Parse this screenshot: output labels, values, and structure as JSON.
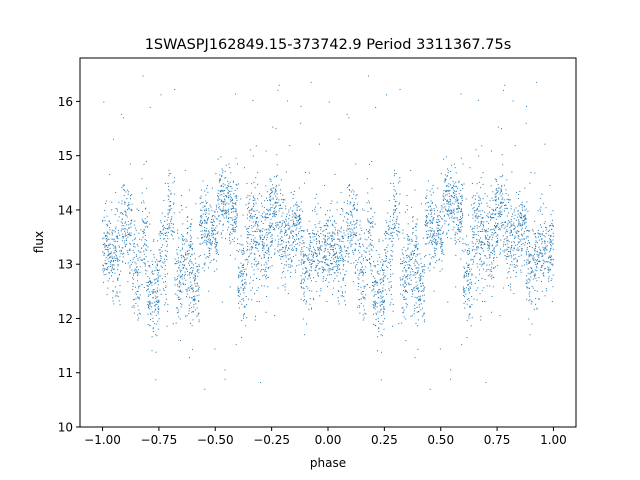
{
  "chart_data": {
    "type": "scatter",
    "title": "1SWASPJ162849.15-373742.9 Period 3311367.75s",
    "xlabel": "phase",
    "ylabel": "flux",
    "xlim": [
      -1.1,
      1.1
    ],
    "ylim": [
      10,
      16.8
    ],
    "xticks": [
      -1.0,
      -0.75,
      -0.5,
      -0.25,
      0.0,
      0.25,
      0.5,
      0.75,
      1.0
    ],
    "xtick_labels": [
      "−1.00",
      "−0.75",
      "−0.50",
      "−0.25",
      "0.00",
      "0.25",
      "0.50",
      "0.75",
      "1.00"
    ],
    "yticks": [
      10,
      11,
      12,
      13,
      14,
      15,
      16
    ],
    "ytick_labels": [
      "10",
      "11",
      "12",
      "13",
      "14",
      "15",
      "16"
    ],
    "grid": false,
    "legend": "none",
    "marker_color": "#1f77b4",
    "phased_flux_profile": {
      "note_phase": [
        0.0,
        0.05,
        0.1,
        0.15,
        0.2,
        0.25,
        0.3,
        0.35,
        0.4,
        0.45,
        0.5,
        0.55,
        0.6,
        0.65,
        0.7,
        0.75,
        0.8,
        0.85,
        0.9,
        0.95,
        1.0
      ],
      "segments": [
        {
          "x_from": 0.0,
          "x_to": 0.04,
          "center": 13.3,
          "spread": 0.35
        },
        {
          "x_from": 0.04,
          "x_to": 0.08,
          "center": 13.2,
          "spread": 0.45
        },
        {
          "x_from": 0.08,
          "x_to": 0.13,
          "center": 13.7,
          "spread": 0.4
        },
        {
          "x_from": 0.13,
          "x_to": 0.17,
          "center": 12.8,
          "spread": 0.5
        },
        {
          "x_from": 0.17,
          "x_to": 0.2,
          "center": 13.5,
          "spread": 0.45
        },
        {
          "x_from": 0.2,
          "x_to": 0.25,
          "center": 12.5,
          "spread": 0.4
        },
        {
          "x_from": 0.25,
          "x_to": 0.29,
          "center": 13.3,
          "spread": 0.45
        },
        {
          "x_from": 0.29,
          "x_to": 0.32,
          "center": 13.9,
          "spread": 0.4
        },
        {
          "x_from": 0.32,
          "x_to": 0.35,
          "center": 12.7,
          "spread": 0.45
        },
        {
          "x_from": 0.35,
          "x_to": 0.4,
          "center": 13.0,
          "spread": 0.5
        },
        {
          "x_from": 0.4,
          "x_to": 0.43,
          "center": 12.6,
          "spread": 0.35
        },
        {
          "x_from": 0.43,
          "x_to": 0.47,
          "center": 13.7,
          "spread": 0.35
        },
        {
          "x_from": 0.47,
          "x_to": 0.51,
          "center": 13.5,
          "spread": 0.3
        },
        {
          "x_from": 0.51,
          "x_to": 0.56,
          "center": 14.2,
          "spread": 0.3
        },
        {
          "x_from": 0.56,
          "x_to": 0.6,
          "center": 13.9,
          "spread": 0.4
        },
        {
          "x_from": 0.6,
          "x_to": 0.64,
          "center": 12.7,
          "spread": 0.4
        },
        {
          "x_from": 0.64,
          "x_to": 0.69,
          "center": 13.6,
          "spread": 0.55
        },
        {
          "x_from": 0.69,
          "x_to": 0.74,
          "center": 13.4,
          "spread": 0.4
        },
        {
          "x_from": 0.74,
          "x_to": 0.79,
          "center": 13.9,
          "spread": 0.45
        },
        {
          "x_from": 0.79,
          "x_to": 0.84,
          "center": 13.4,
          "spread": 0.4
        },
        {
          "x_from": 0.84,
          "x_to": 0.88,
          "center": 13.7,
          "spread": 0.35
        },
        {
          "x_from": 0.88,
          "x_to": 0.93,
          "center": 13.1,
          "spread": 0.45
        },
        {
          "x_from": 0.93,
          "x_to": 1.0,
          "center": 13.3,
          "spread": 0.4
        }
      ],
      "points_per_cycle": 2600,
      "outlier_fraction": 0.03,
      "outlier_range": [
        10.3,
        16.6
      ]
    }
  }
}
